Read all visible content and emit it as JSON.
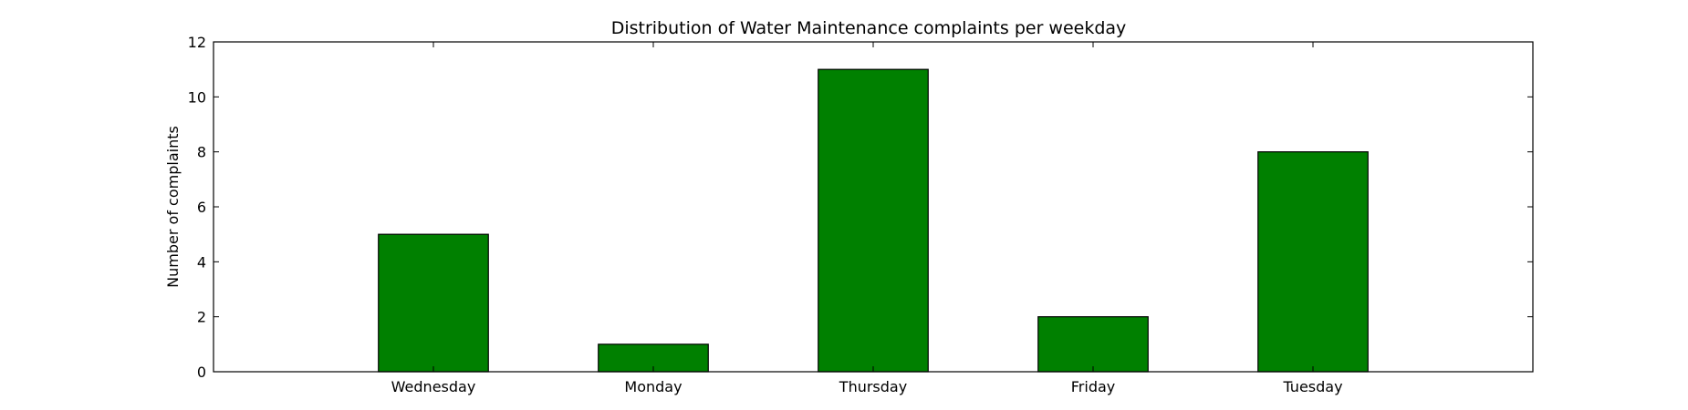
{
  "chart_data": {
    "type": "bar",
    "title": "Distribution of  Water Maintenance complaints per weekday",
    "xlabel": "",
    "ylabel": "Number of complaints",
    "categories": [
      "Wednesday",
      "Monday",
      "Thursday",
      "Friday",
      "Tuesday"
    ],
    "values": [
      5,
      1,
      11,
      2,
      8
    ],
    "ylim": [
      0,
      12
    ],
    "yticks": [
      "0",
      "2",
      "4",
      "6",
      "8",
      "10",
      "12"
    ],
    "grid": false,
    "legend": "none",
    "bar_color": "#008000"
  }
}
